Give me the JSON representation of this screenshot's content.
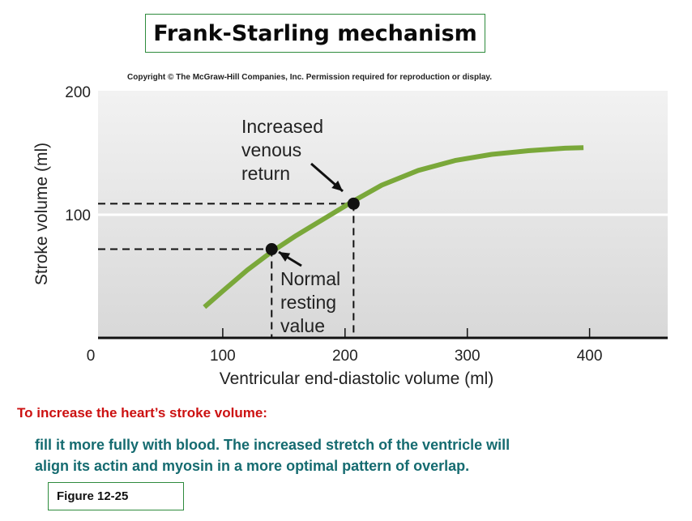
{
  "title": "Frank-Starling mechanism",
  "copyright": "Copyright © The McGraw-Hill Companies, Inc. Permission required for reproduction or display.",
  "chart_data": {
    "type": "line",
    "xlabel": "Ventricular end-diastolic volume (ml)",
    "ylabel": "Stroke volume (ml)",
    "xlim": [
      0,
      460
    ],
    "ylim": [
      0,
      200
    ],
    "x_ticks": [
      0,
      100,
      200,
      300,
      400
    ],
    "y_ticks": [
      100,
      200
    ],
    "series": [
      {
        "color": "#7aa83a",
        "x": [
          85,
          100,
          120,
          140,
          160,
          180,
          205,
          230,
          260,
          290,
          320,
          350,
          380,
          395
        ],
        "y": [
          25,
          38,
          55,
          70,
          83,
          95,
          110,
          124,
          136,
          144,
          149,
          152,
          154,
          154.5
        ]
      }
    ],
    "points": [
      {
        "x": 140,
        "y": 72,
        "label": [
          "Normal",
          "resting",
          "value"
        ]
      },
      {
        "x": 207,
        "y": 109,
        "label": [
          "Increased",
          "venous",
          "return"
        ]
      }
    ]
  },
  "subheading": "To increase the heart’s stroke volume:",
  "body_lines": [
    "fill it more fully with blood. The increased stretch of the ventricle will",
    "align its actin and myosin in a more optimal pattern of overlap."
  ],
  "figure_label": "Figure  12-25"
}
